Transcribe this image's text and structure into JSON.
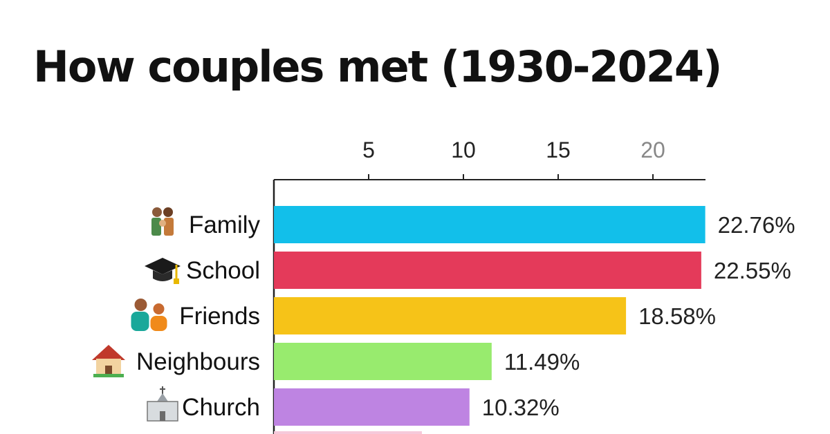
{
  "chart_data": {
    "type": "bar",
    "orientation": "horizontal",
    "title": "How couples met (1930-2024)",
    "xlabel": "",
    "ylabel": "",
    "xticks": [
      5,
      10,
      15,
      20
    ],
    "xlim": [
      0,
      23
    ],
    "categories": [
      "Family",
      "School",
      "Friends",
      "Neighbours",
      "Church"
    ],
    "icons": [
      "family-icon",
      "graduation-cap-icon",
      "friends-icon",
      "house-icon",
      "church-icon"
    ],
    "values": [
      22.76,
      22.55,
      18.58,
      11.49,
      10.32
    ],
    "value_labels": [
      "22.76%",
      "22.55%",
      "18.58%",
      "11.49%",
      "10.32%"
    ],
    "colors": [
      "#12BFEA",
      "#E43A5A",
      "#F6C318",
      "#98EB6E",
      "#BE84E2"
    ],
    "next_bar_color": "#F6C9DA",
    "grid": false,
    "legend": "none"
  }
}
